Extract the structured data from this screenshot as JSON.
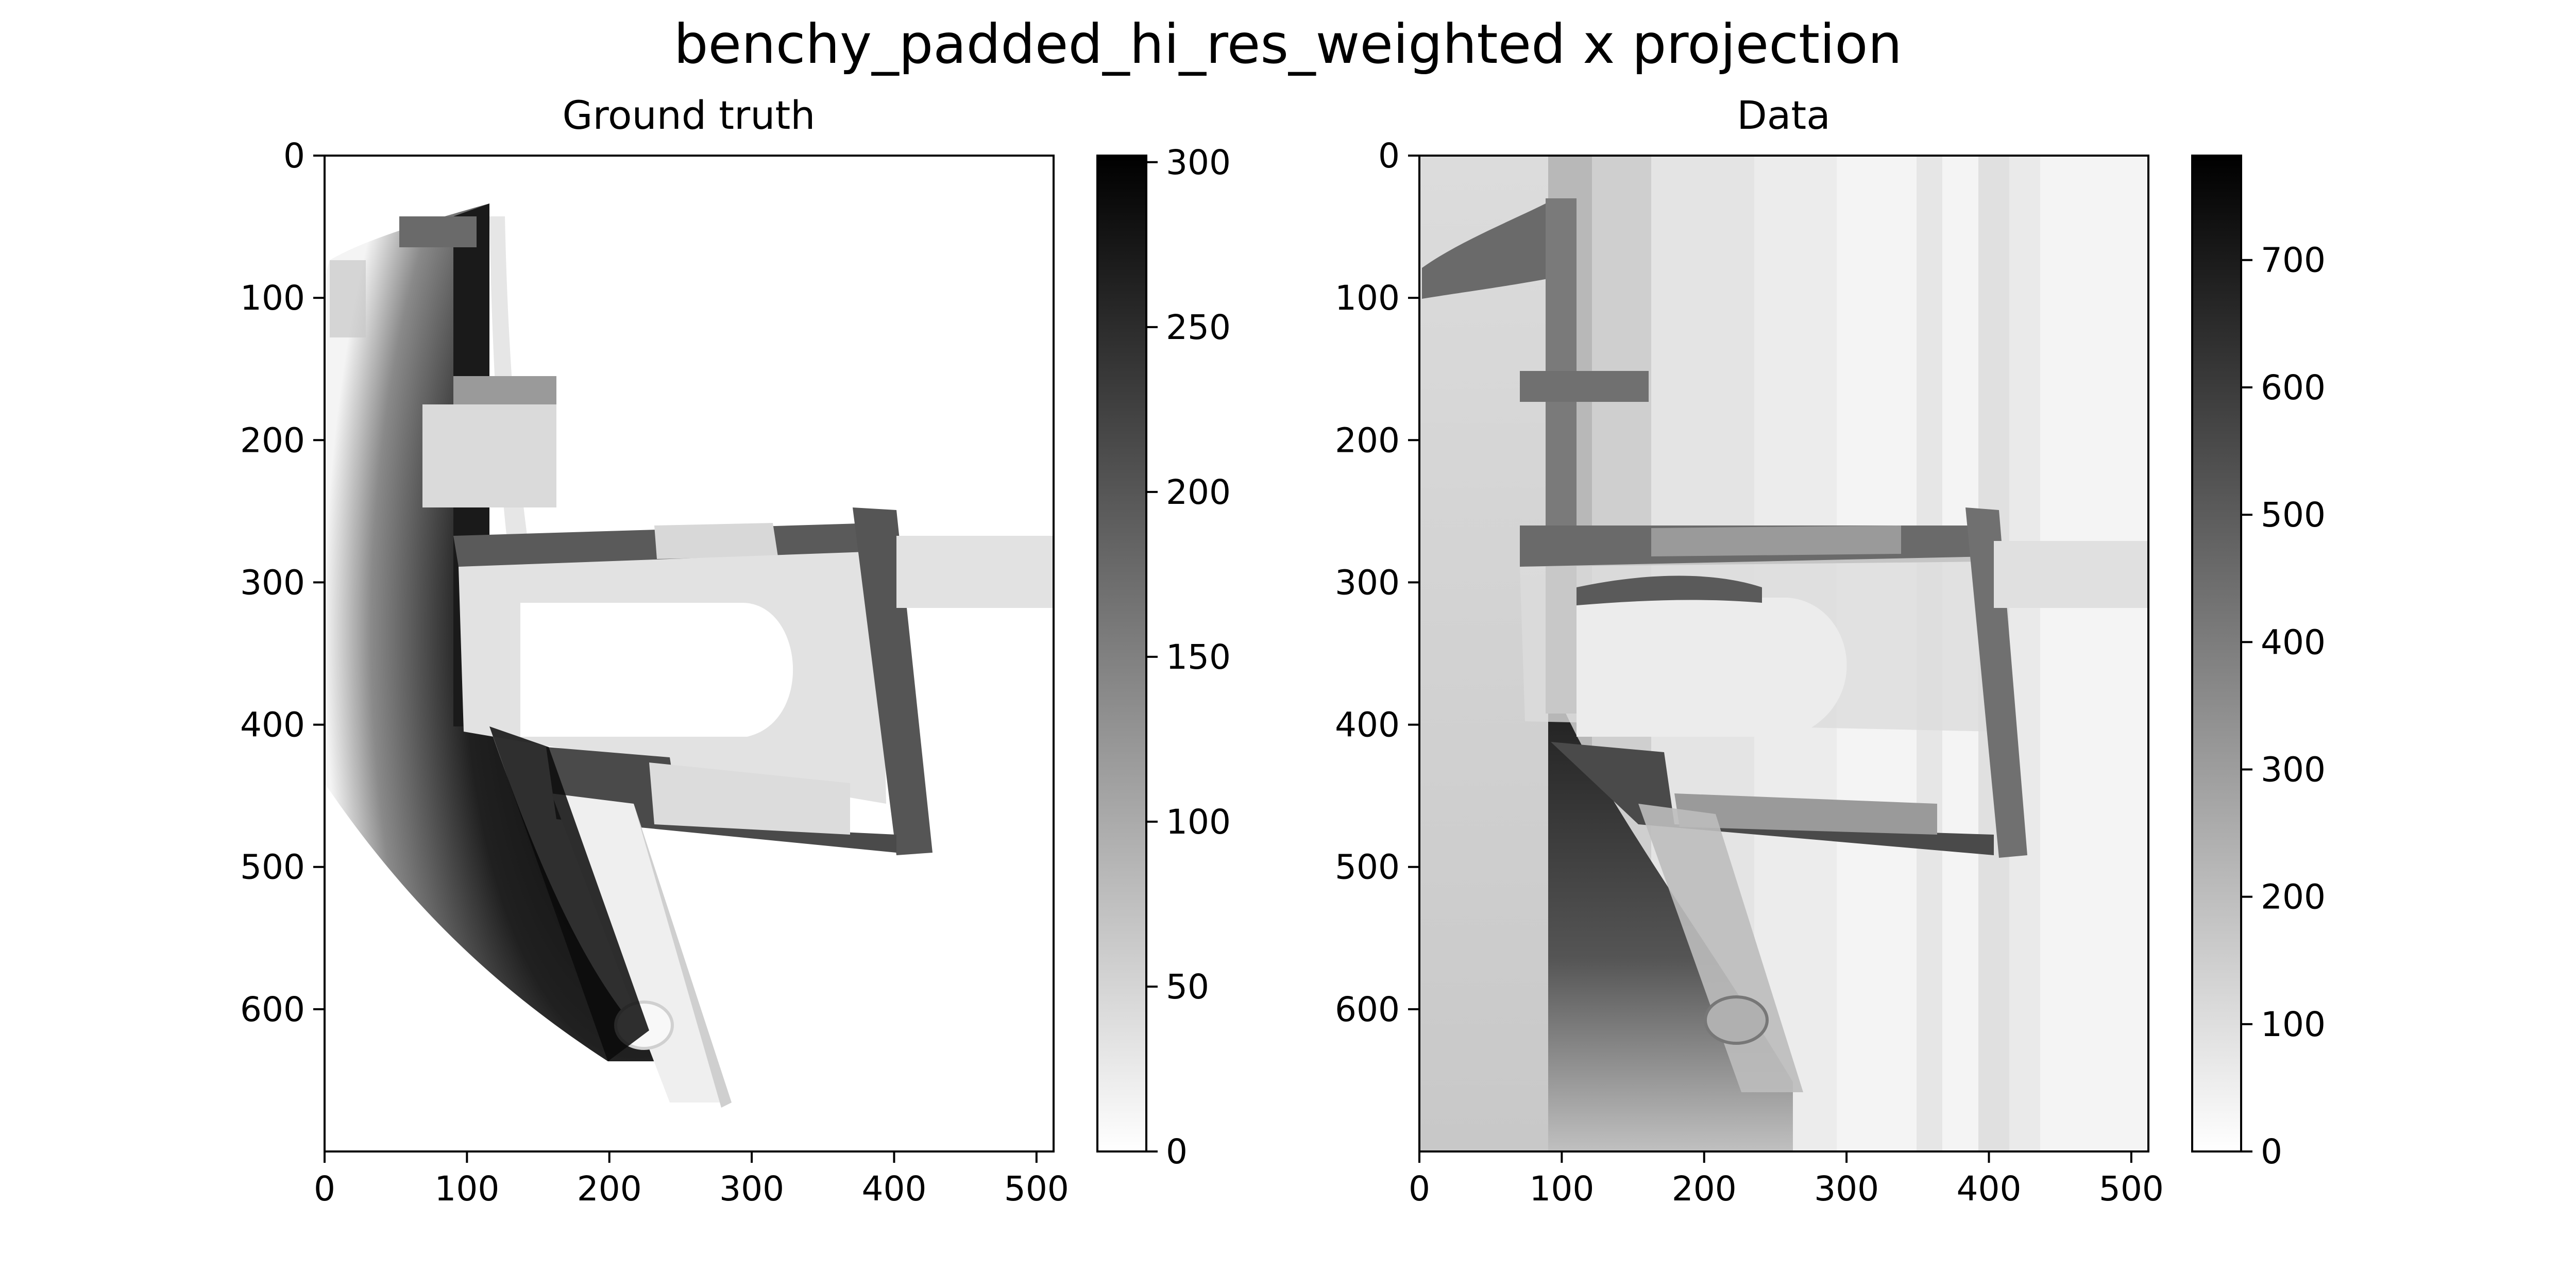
{
  "figure": {
    "title": "benchy_padded_hi_res_weighted x projection"
  },
  "chart_data": [
    {
      "type": "heatmap",
      "title": "Ground truth",
      "xlabel": "",
      "ylabel": "",
      "xlim": [
        0,
        512
      ],
      "ylim": [
        700,
        0
      ],
      "x_ticks": [
        0,
        100,
        200,
        300,
        400,
        500
      ],
      "y_ticks": [
        0,
        100,
        200,
        300,
        400,
        500,
        600
      ],
      "colormap": "gray_r",
      "colorbar": {
        "min": 0,
        "max": 302,
        "ticks": [
          0,
          50,
          100,
          150,
          200,
          250,
          300
        ]
      },
      "grid": false
    },
    {
      "type": "heatmap",
      "title": "Data",
      "xlabel": "",
      "ylabel": "",
      "xlim": [
        0,
        512
      ],
      "ylim": [
        700,
        0
      ],
      "x_ticks": [
        0,
        100,
        200,
        300,
        400,
        500
      ],
      "y_ticks": [
        0,
        100,
        200,
        300,
        400,
        500,
        600
      ],
      "colormap": "gray_r",
      "colorbar": {
        "min": 0,
        "max": 782,
        "ticks": [
          0,
          100,
          200,
          300,
          400,
          500,
          600,
          700
        ]
      },
      "grid": false
    }
  ]
}
